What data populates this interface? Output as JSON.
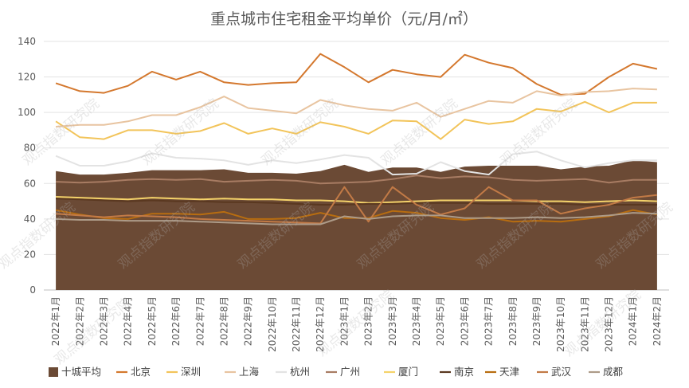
{
  "chart_data": {
    "type": "line",
    "title": "重点城市住宅租金平均单价（元/月/㎡）",
    "watermark": "观点指数研究院",
    "xlabel": "",
    "ylabel": "",
    "ylim": [
      0,
      140
    ],
    "yticks": [
      0,
      20,
      40,
      60,
      80,
      100,
      120,
      140
    ],
    "grid": true,
    "legend_position": "bottom",
    "categories": [
      "2022年1月",
      "2022年2月",
      "2022年3月",
      "2022年4月",
      "2022年5月",
      "2022年6月",
      "2022年7月",
      "2022年8月",
      "2022年9月",
      "2022年10月",
      "2022年11月",
      "2022年12月",
      "2023年1月",
      "2023年2月",
      "2023年3月",
      "2023年4月",
      "2023年5月",
      "2023年6月",
      "2023年7月",
      "2023年8月",
      "2023年9月",
      "2023年10月",
      "2023年11月",
      "2023年12月",
      "2024年1月",
      "2024年2月"
    ],
    "series": [
      {
        "name": "十城平均",
        "type": "area",
        "color": "#6b4a35",
        "values": [
          67,
          65,
          65,
          66,
          67.5,
          67.5,
          67.5,
          68,
          66,
          66,
          65.5,
          67,
          70.5,
          66.5,
          69,
          69,
          66.5,
          69.5,
          70,
          70,
          70,
          68,
          69.5,
          70,
          73,
          72
        ]
      },
      {
        "name": "北京",
        "color": "#d4782e",
        "values": [
          116.5,
          112,
          111,
          115,
          123,
          118.5,
          123,
          117,
          115.5,
          116.5,
          117,
          133,
          125.5,
          117,
          124,
          121.5,
          120,
          132.5,
          128,
          125,
          116,
          110,
          110.5,
          120,
          127.5,
          124.5
        ]
      },
      {
        "name": "深圳",
        "color": "#f2c45a",
        "values": [
          95,
          86,
          85,
          90,
          90,
          88,
          89.5,
          94,
          88,
          91,
          88,
          94.5,
          92,
          88,
          95.5,
          95,
          85,
          96,
          93.5,
          95,
          102,
          100.5,
          106,
          100,
          105.5,
          105.5
        ]
      },
      {
        "name": "上海",
        "color": "#e8c4a0",
        "values": [
          92,
          93,
          93,
          95,
          98.5,
          98.5,
          103,
          109,
          102.5,
          101,
          99.5,
          107,
          104,
          102,
          101,
          105.5,
          97.5,
          102,
          106.5,
          105.5,
          112,
          109.5,
          111.5,
          112,
          113.5,
          113
        ]
      },
      {
        "name": "杭州",
        "color": "#e3e3e3",
        "values": [
          75.5,
          70,
          70,
          72.5,
          77,
          74.5,
          74,
          73,
          70.5,
          73,
          71.5,
          73.5,
          76,
          74.5,
          65,
          65.5,
          72,
          67,
          65,
          76.5,
          78,
          73,
          69,
          71.5,
          73,
          73
        ]
      },
      {
        "name": "广州",
        "color": "#a87c63",
        "values": [
          61,
          60.5,
          61,
          62,
          62.5,
          62,
          62.5,
          61,
          61.5,
          62,
          61.5,
          60,
          60.5,
          61,
          62.5,
          64.5,
          63,
          64,
          63.5,
          62,
          61.5,
          62,
          62.5,
          60.5,
          62,
          62
        ]
      },
      {
        "name": "厦门",
        "color": "#f5d36a",
        "values": [
          52.5,
          52,
          51.5,
          51,
          52,
          51.5,
          51,
          51.5,
          51,
          51,
          50.5,
          50.5,
          50,
          49,
          49.5,
          50,
          50.5,
          50.5,
          50.5,
          50.5,
          50,
          50,
          49.5,
          50,
          50.5,
          50
        ]
      },
      {
        "name": "南京",
        "color": "#5a3820",
        "values": [
          51.5,
          51,
          50.5,
          50,
          50.5,
          50,
          50,
          49.5,
          49.5,
          49,
          48.5,
          48,
          48,
          48.5,
          48.5,
          49,
          49,
          49,
          48.5,
          48.5,
          48.5,
          48.5,
          48,
          48,
          48,
          48
        ]
      },
      {
        "name": "天津",
        "color": "#b86d10",
        "values": [
          45,
          42.5,
          40.5,
          40,
          43,
          43,
          42.5,
          44,
          40,
          40,
          40.5,
          43.5,
          40.5,
          40.5,
          44.5,
          43.5,
          40.5,
          39.5,
          41,
          38.5,
          39,
          38.5,
          40,
          41.5,
          45,
          42.5
        ]
      },
      {
        "name": "武汉",
        "color": "#c27a46",
        "values": [
          43,
          42,
          41,
          42,
          41.5,
          41,
          40,
          39.5,
          39,
          38.5,
          38,
          37.5,
          58,
          38.5,
          58,
          48,
          42.5,
          46,
          58,
          50.5,
          50.5,
          43,
          46,
          48,
          52,
          53.5
        ]
      },
      {
        "name": "成都",
        "color": "#ad9b88",
        "values": [
          40,
          39.5,
          39.5,
          39,
          39,
          39,
          38.5,
          38,
          37.5,
          37,
          37,
          37,
          41.5,
          40,
          41.5,
          42,
          42,
          40.5,
          40.5,
          40.5,
          41,
          40.5,
          41,
          42,
          43.5,
          43
        ]
      }
    ]
  }
}
